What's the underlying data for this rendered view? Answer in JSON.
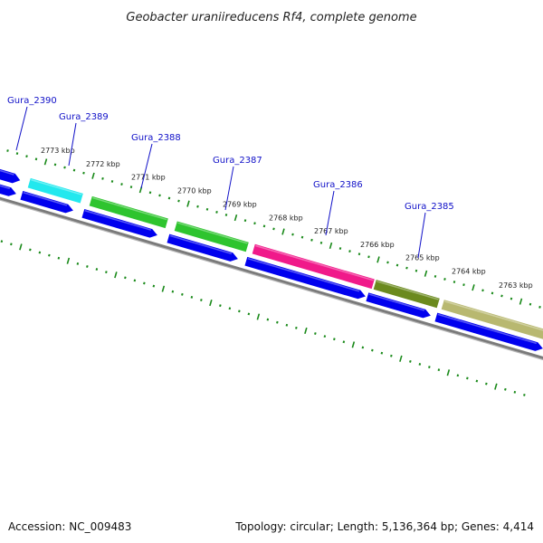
{
  "title": "Geobacter uraniireducens Rf4, complete genome",
  "footer": {
    "accession": "Accession: NC_009483",
    "summary": "Topology: circular; Length: 5,136,364 bp; Genes: 4,414"
  },
  "colors": {
    "tick": "#1a8a1a",
    "backbone": "#7a7a7a",
    "reverse_strand": "#0000ee",
    "label": "#1010c8"
  },
  "kbp_labels": [
    "2773 kbp",
    "2772 kbp",
    "2771 kbp",
    "2770 kbp",
    "2769 kbp",
    "2768 kbp",
    "2767 kbp",
    "2766 kbp",
    "2765 kbp",
    "2764 kbp",
    "2763 kbp"
  ],
  "genes": [
    {
      "name": "Gura_2390",
      "color": "#0000ee"
    },
    {
      "name": "Gura_2389",
      "color": "#22e8ee"
    },
    {
      "name": "Gura_2388",
      "color": "#2ec42e"
    },
    {
      "name": "Gura_2387",
      "color": "#2ec42e"
    },
    {
      "name": "Gura_2386",
      "color": "#f01a8a"
    },
    {
      "name": "Gura_2385",
      "color": "#6b8a1e"
    },
    {
      "name": "",
      "color": "#b8b870"
    }
  ]
}
